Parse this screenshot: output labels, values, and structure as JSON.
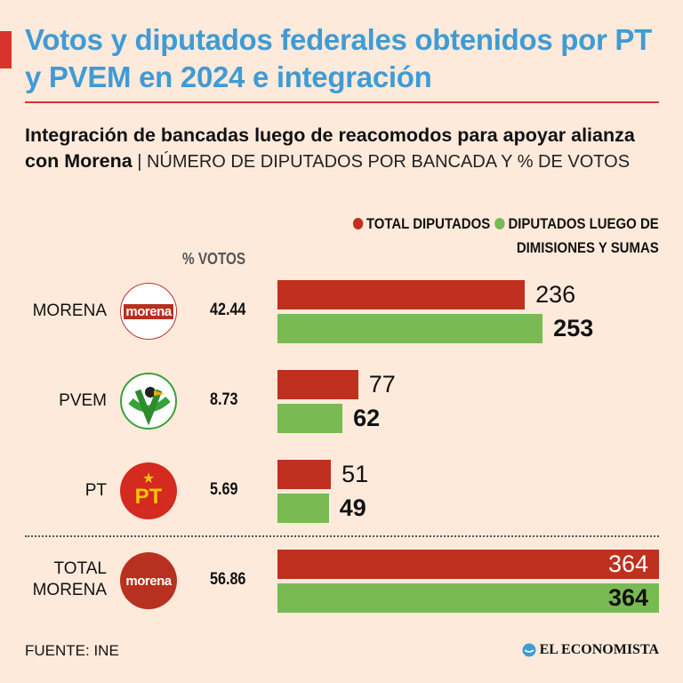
{
  "title": "Votos y diputados federales obtenidos por PT y PVEM en 2024 e integración",
  "subtitle_bold": "Integración de bancadas luego de reacomodos para apoyar alianza con Morena",
  "subtitle_light": " | NÚMERO DE DIPUTADOS POR BANCADA Y % DE VOTOS",
  "votes_header": "% VOTOS",
  "source": "FUENTE: INE",
  "brand": "EL ECONOMISTA",
  "colors": {
    "red": "#c0301e",
    "green": "#7aba52",
    "title": "#3f9bd4"
  },
  "chart_data": {
    "type": "bar",
    "orientation": "horizontal",
    "categories": [
      "MORENA",
      "PVEM",
      "PT",
      "TOTAL MORENA"
    ],
    "logos": [
      "morena",
      "",
      "PT",
      "morena"
    ],
    "votes_pct": [
      "42.44",
      "8.73",
      "5.69",
      "56.86"
    ],
    "series": [
      {
        "name": "TOTAL DIPUTADOS",
        "values": [
          236,
          77,
          51,
          364
        ]
      },
      {
        "name": "DIPUTADOS LUEGO DE DIMISIONES Y SUMAS",
        "values": [
          253,
          62,
          49,
          364
        ]
      }
    ],
    "xlim": [
      0,
      364
    ]
  }
}
